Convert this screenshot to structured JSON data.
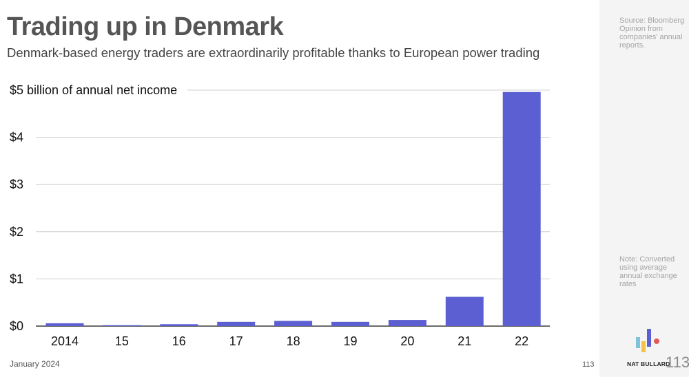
{
  "header": {
    "title": "Trading up in Denmark",
    "subtitle": "Denmark-based energy traders are extraordinarily profitable thanks to European power trading"
  },
  "footer": {
    "date": "January 2024",
    "page": "113"
  },
  "sidebar": {
    "source": "Source: Bloomberg Opinion from companies' annual reports.",
    "note": "Note: Converted using average annual exchange rates",
    "brand": "NAT BULLARD",
    "page_number": "113"
  },
  "colors": {
    "bar": "#5b5fd1",
    "grid": "#d0d0d0",
    "axis": "#111111"
  },
  "chart_data": {
    "type": "bar",
    "title": "",
    "ylabel": "$5 billion of annual net income",
    "xlabel": "",
    "ylim": [
      0,
      5
    ],
    "categories": [
      "2014",
      "15",
      "16",
      "17",
      "18",
      "19",
      "20",
      "21",
      "22"
    ],
    "values": [
      0.06,
      0.02,
      0.04,
      0.09,
      0.11,
      0.09,
      0.13,
      0.62,
      4.96
    ],
    "yticks": [
      {
        "value": 5,
        "label": "$5 billion of annual net income"
      },
      {
        "value": 4,
        "label": "$4"
      },
      {
        "value": 3,
        "label": "$3"
      },
      {
        "value": 2,
        "label": "$2"
      },
      {
        "value": 1,
        "label": "$1"
      },
      {
        "value": 0,
        "label": "$0"
      }
    ]
  }
}
